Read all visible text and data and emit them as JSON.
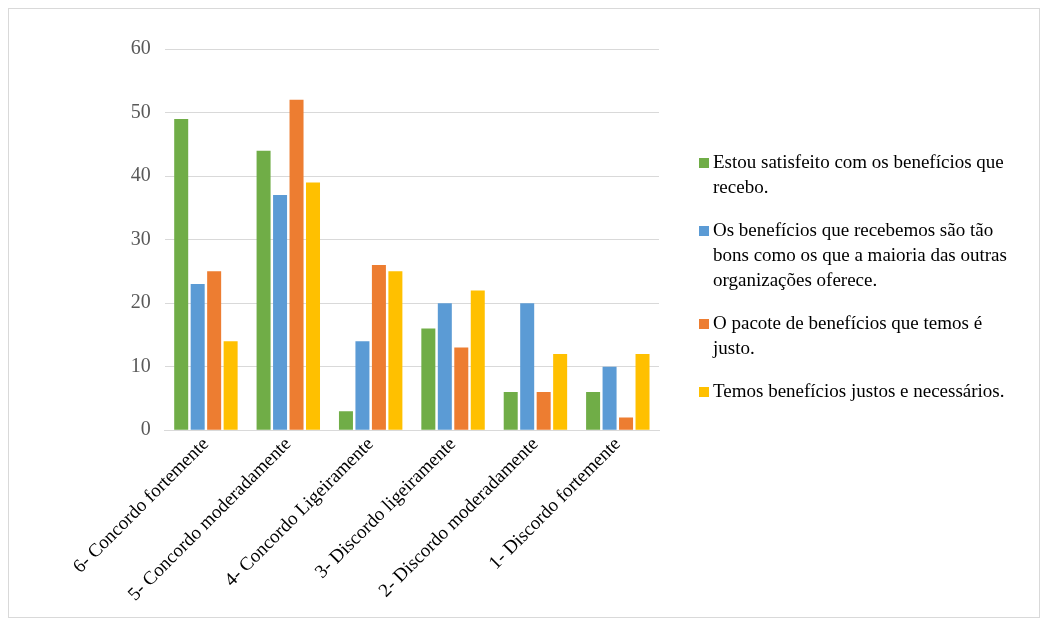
{
  "chart_data": {
    "type": "bar",
    "categories": [
      "6- Concordo fortemente",
      "5- Concordo moderadamente",
      "4- Concordo Ligeiramente",
      "3- Discordo ligeiramente",
      "2- Discordo moderadamente",
      "1- Discordo fortemente"
    ],
    "series": [
      {
        "name": "Estou satisfeito com os benefícios que recebo.",
        "color": "#70ad47",
        "values": [
          49,
          44,
          3,
          16,
          6,
          6
        ]
      },
      {
        "name": "Os benefícios que recebemos são tão bons como os que a maioria das outras organizações oferece.",
        "color": "#5b9bd5",
        "values": [
          23,
          37,
          14,
          20,
          20,
          10
        ]
      },
      {
        "name": "O pacote de benefícios que temos é justo.",
        "color": "#ed7d31",
        "values": [
          25,
          52,
          26,
          13,
          6,
          2
        ]
      },
      {
        "name": "Temos benefícios justos e necessários.",
        "color": "#ffc000",
        "values": [
          14,
          39,
          25,
          22,
          12,
          12
        ]
      }
    ],
    "ylim": [
      0,
      60
    ],
    "yticks": [
      0,
      10,
      20,
      30,
      40,
      50,
      60
    ],
    "grid": "y",
    "legend": "right"
  }
}
